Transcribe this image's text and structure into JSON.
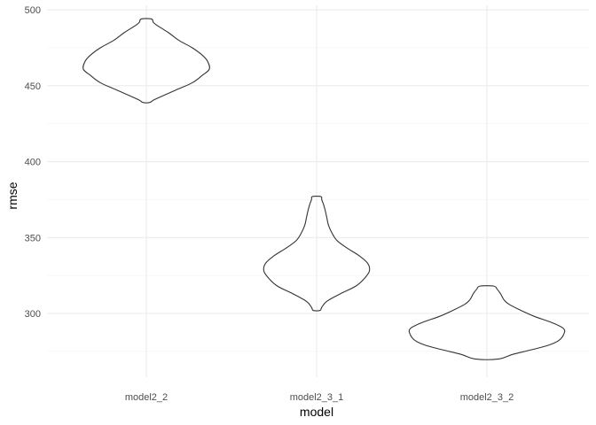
{
  "chart_data": {
    "type": "violin",
    "xlabel": "model",
    "ylabel": "rmse",
    "categories": [
      "model2_2",
      "model2_3_1",
      "model2_3_2"
    ],
    "ylim": [
      258,
      503
    ],
    "yticks": [
      300,
      350,
      400,
      450,
      500
    ],
    "grid": true,
    "colors": {
      "outline": "#333333",
      "grid_major": "#ebebeb",
      "grid_minor": "#f5f5f5",
      "tick_text": "#4d4d4d"
    },
    "violins": [
      {
        "category": "model2_2",
        "profile": [
          {
            "y": 439,
            "halfwidth": 0.02
          },
          {
            "y": 441,
            "halfwidth": 0.05
          },
          {
            "y": 447,
            "halfwidth": 0.17
          },
          {
            "y": 452,
            "halfwidth": 0.27
          },
          {
            "y": 457,
            "halfwidth": 0.33
          },
          {
            "y": 461,
            "halfwidth": 0.37
          },
          {
            "y": 466,
            "halfwidth": 0.36
          },
          {
            "y": 470,
            "halfwidth": 0.33
          },
          {
            "y": 475,
            "halfwidth": 0.27
          },
          {
            "y": 480,
            "halfwidth": 0.19
          },
          {
            "y": 485,
            "halfwidth": 0.13
          },
          {
            "y": 490,
            "halfwidth": 0.06
          },
          {
            "y": 492,
            "halfwidth": 0.04
          },
          {
            "y": 494,
            "halfwidth": 0.03
          }
        ]
      },
      {
        "category": "model2_3_1",
        "profile": [
          {
            "y": 302,
            "halfwidth": 0.02
          },
          {
            "y": 304,
            "halfwidth": 0.03
          },
          {
            "y": 308,
            "halfwidth": 0.06
          },
          {
            "y": 313,
            "halfwidth": 0.14
          },
          {
            "y": 318,
            "halfwidth": 0.23
          },
          {
            "y": 323,
            "halfwidth": 0.28
          },
          {
            "y": 328,
            "halfwidth": 0.31
          },
          {
            "y": 333,
            "halfwidth": 0.3
          },
          {
            "y": 338,
            "halfwidth": 0.25
          },
          {
            "y": 343,
            "halfwidth": 0.18
          },
          {
            "y": 348,
            "halfwidth": 0.12
          },
          {
            "y": 353,
            "halfwidth": 0.09
          },
          {
            "y": 358,
            "halfwidth": 0.07
          },
          {
            "y": 363,
            "halfwidth": 0.06
          },
          {
            "y": 368,
            "halfwidth": 0.05
          },
          {
            "y": 372,
            "halfwidth": 0.04
          },
          {
            "y": 375,
            "halfwidth": 0.03
          },
          {
            "y": 377,
            "halfwidth": 0.025
          }
        ]
      },
      {
        "category": "model2_3_2",
        "profile": [
          {
            "y": 270,
            "halfwidth": 0.07
          },
          {
            "y": 273,
            "halfwidth": 0.15
          },
          {
            "y": 276,
            "halfwidth": 0.26
          },
          {
            "y": 279,
            "halfwidth": 0.36
          },
          {
            "y": 282,
            "halfwidth": 0.42
          },
          {
            "y": 286,
            "halfwidth": 0.45
          },
          {
            "y": 290,
            "halfwidth": 0.45
          },
          {
            "y": 294,
            "halfwidth": 0.38
          },
          {
            "y": 298,
            "halfwidth": 0.28
          },
          {
            "y": 302,
            "halfwidth": 0.2
          },
          {
            "y": 306,
            "halfwidth": 0.13
          },
          {
            "y": 309,
            "halfwidth": 0.1
          },
          {
            "y": 313,
            "halfwidth": 0.08
          },
          {
            "y": 316,
            "halfwidth": 0.06
          },
          {
            "y": 318,
            "halfwidth": 0.04
          }
        ]
      }
    ]
  }
}
